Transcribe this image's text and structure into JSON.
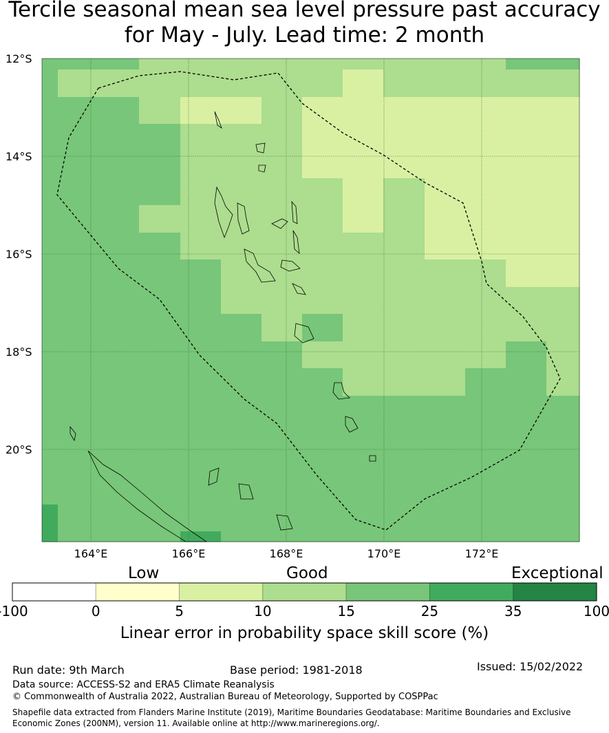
{
  "title": "Tercile seasonal mean sea level pressure past accuracy for May - July. Lead time: 2 month",
  "map": {
    "lat_labels": [
      "12°S",
      "14°S",
      "16°S",
      "18°S",
      "20°S"
    ],
    "lon_labels": [
      "164°E",
      "166°E",
      "168°E",
      "170°E",
      "172°E"
    ],
    "category_colors": {
      "A": "#78c679",
      "B": "#addd8e",
      "C": "#d9f0a3",
      "D": "#41ab5d"
    },
    "grid_rows": [
      "AAABBBBBBBBBAA",
      "ABBBBBBBCBBBBB",
      "AAABCCBCCCCCCC",
      "AAAABBBCCCCCCC",
      "AAAABBBCCCCCCC",
      "AAAABBBBCBCCCC",
      "AAABBBBBCBCCCC",
      "AAAABBBBBBCCCC",
      "AAAAABBBBBBBCC",
      "AAAAABBBBBBBBB",
      "AAAAAABABBBBBB",
      "AAAAAAABBBBBAB",
      "AAAAAAAABBBAAB",
      "AAAAAAAAAAAAAA",
      "AAAAAAAAAAAAAA",
      "AAAAAAAAAAAAAA",
      "AAAAAAAAAAAAAA",
      "DAAAAAAAAAAAAA",
      "DAAADAAAAAAAAA"
    ]
  },
  "legend": {
    "categories": [
      "Low",
      "Good",
      "Exceptional"
    ],
    "bins": [
      {
        "color": "#ffffff"
      },
      {
        "color": "#ffffcc"
      },
      {
        "color": "#d9f0a3"
      },
      {
        "color": "#addd8e"
      },
      {
        "color": "#78c679"
      },
      {
        "color": "#41ab5d"
      },
      {
        "color": "#238443"
      }
    ],
    "ticks": [
      "-100",
      "0",
      "5",
      "10",
      "15",
      "25",
      "35",
      "100"
    ],
    "label": "Linear error in probability space skill score (%)"
  },
  "footer": {
    "run_date": "Run date: 9th March",
    "base_period": "Base period: 1981-2018",
    "issued": "Issued: 15/02/2022",
    "data_source": "Data source: ACCESS-S2 and ERA5 Climate Reanalysis",
    "copyright": "© Commonwealth of Australia 2022, Australian Bureau of Meteorology, Supported by COSPPac",
    "shapefile_1": "Shapefile data extracted from Flanders Marine Institute (2019), Maritime Boundaries Geodatabase: Maritime Boundaries and Exclusive",
    "shapefile_2": "Economic Zones (200NM), version 11. Available online at http://www.marineregions.org/."
  }
}
